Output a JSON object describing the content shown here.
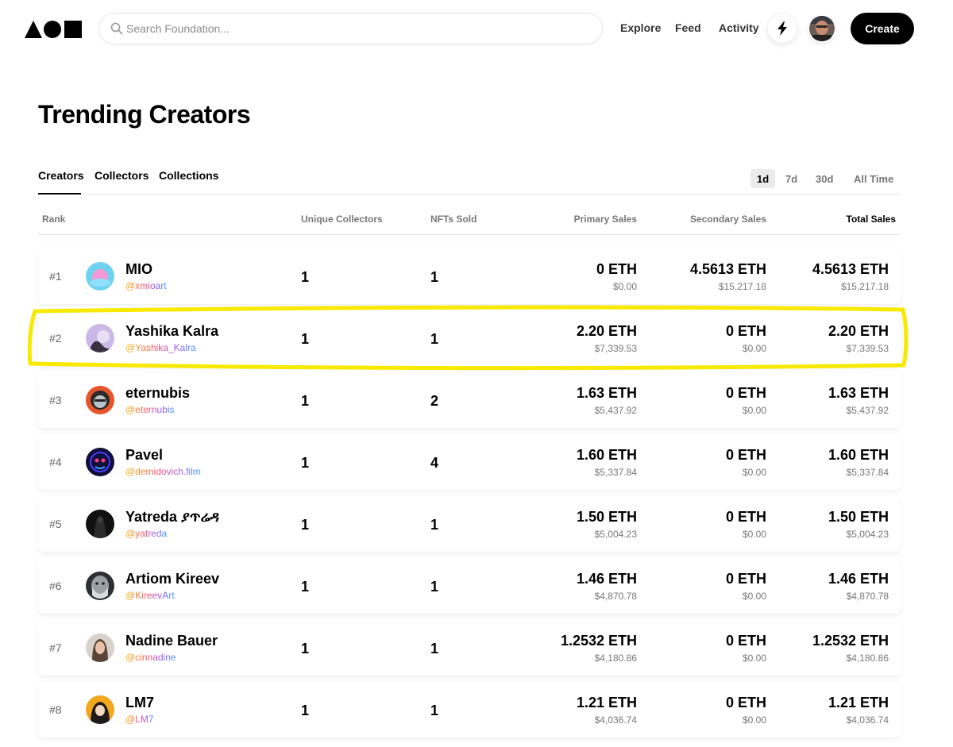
{
  "header": {
    "search_placeholder": "Search Foundation...",
    "nav": [
      "Explore",
      "Feed",
      "Activity"
    ],
    "create_label": "Create"
  },
  "page": {
    "title": "Trending Creators"
  },
  "tabs": [
    "Creators",
    "Collectors",
    "Collections"
  ],
  "active_tab": "Creators",
  "periods": [
    "1d",
    "7d",
    "30d",
    "All Time"
  ],
  "active_period": "1d",
  "columns": {
    "rank": "Rank",
    "unique_collectors": "Unique Collectors",
    "nfts_sold": "NFTs Sold",
    "primary_sales": "Primary Sales",
    "secondary_sales": "Secondary Sales",
    "total_sales": "Total Sales"
  },
  "rows": [
    {
      "rank": "#1",
      "name": "MIO",
      "handle": "@xmioart",
      "unique_collectors": "1",
      "nfts_sold": "1",
      "primary_eth": "0 ETH",
      "primary_usd": "$0.00",
      "secondary_eth": "4.5613 ETH",
      "secondary_usd": "$15,217.18",
      "total_eth": "4.5613 ETH",
      "total_usd": "$15,217.18"
    },
    {
      "rank": "#2",
      "name": "Yashika Kalra",
      "handle": "@Yashika_Kalra",
      "unique_collectors": "1",
      "nfts_sold": "1",
      "primary_eth": "2.20 ETH",
      "primary_usd": "$7,339.53",
      "secondary_eth": "0 ETH",
      "secondary_usd": "$0.00",
      "total_eth": "2.20 ETH",
      "total_usd": "$7,339.53"
    },
    {
      "rank": "#3",
      "name": "eternubis",
      "handle": "@eternubis",
      "unique_collectors": "1",
      "nfts_sold": "2",
      "primary_eth": "1.63 ETH",
      "primary_usd": "$5,437.92",
      "secondary_eth": "0 ETH",
      "secondary_usd": "$0.00",
      "total_eth": "1.63 ETH",
      "total_usd": "$5,437.92"
    },
    {
      "rank": "#4",
      "name": "Pavel",
      "handle": "@demidovich.film",
      "unique_collectors": "1",
      "nfts_sold": "4",
      "primary_eth": "1.60 ETH",
      "primary_usd": "$5,337.84",
      "secondary_eth": "0 ETH",
      "secondary_usd": "$0.00",
      "total_eth": "1.60 ETH",
      "total_usd": "$5,337.84"
    },
    {
      "rank": "#5",
      "name": "Yatreda ያጥሬዳ",
      "handle": "@yatreda",
      "unique_collectors": "1",
      "nfts_sold": "1",
      "primary_eth": "1.50 ETH",
      "primary_usd": "$5,004.23",
      "secondary_eth": "0 ETH",
      "secondary_usd": "$0.00",
      "total_eth": "1.50 ETH",
      "total_usd": "$5,004.23"
    },
    {
      "rank": "#6",
      "name": "Artiom Kireev",
      "handle": "@KireevArt",
      "unique_collectors": "1",
      "nfts_sold": "1",
      "primary_eth": "1.46 ETH",
      "primary_usd": "$4,870.78",
      "secondary_eth": "0 ETH",
      "secondary_usd": "$0.00",
      "total_eth": "1.46 ETH",
      "total_usd": "$4,870.78"
    },
    {
      "rank": "#7",
      "name": "Nadine Bauer",
      "handle": "@cinnadine",
      "unique_collectors": "1",
      "nfts_sold": "1",
      "primary_eth": "1.2532 ETH",
      "primary_usd": "$4,180.86",
      "secondary_eth": "0 ETH",
      "secondary_usd": "$0.00",
      "total_eth": "1.2532 ETH",
      "total_usd": "$4,180.86"
    },
    {
      "rank": "#8",
      "name": "LM7",
      "handle": "@LM7",
      "unique_collectors": "1",
      "nfts_sold": "1",
      "primary_eth": "1.21 ETH",
      "primary_usd": "$4,036.74",
      "secondary_eth": "0 ETH",
      "secondary_usd": "$0.00",
      "total_eth": "1.21 ETH",
      "total_usd": "$4,036.74"
    }
  ],
  "colors": {
    "highlight": "#f7ea00",
    "create_button": "#000000",
    "handle_gradient": [
      "#f5b400",
      "#ff4d6d",
      "#8a5cff",
      "#3aa0ff"
    ]
  }
}
